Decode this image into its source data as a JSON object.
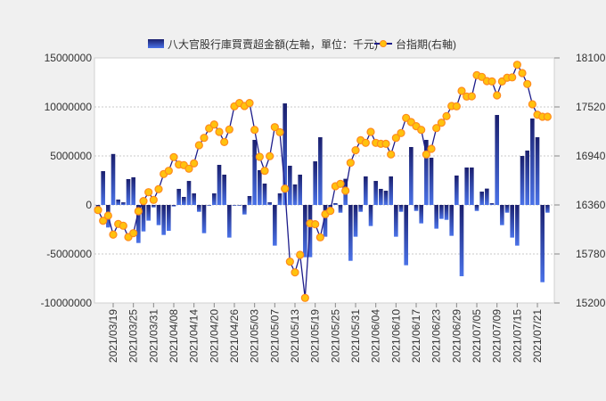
{
  "chart_data": {
    "type": "bar+line",
    "legend": {
      "position": "top-center",
      "bar_label": "八大官股行庫買賣超金額(左軸，單位：千元)",
      "line_label": "台指期(右軸)"
    },
    "left_axis": {
      "min": -10000000,
      "max": 15000000,
      "step": 5000000,
      "ticks": [
        "15000000",
        "10000000",
        "5000000",
        "0",
        "-5000000",
        "-10000000"
      ]
    },
    "right_axis": {
      "min": 15200,
      "max": 18100,
      "step": 580,
      "ticks": [
        "18100",
        "17520",
        "16940",
        "16360",
        "15780",
        "15200"
      ]
    },
    "grid": true,
    "x_tick_labels": [
      "2021/03/19",
      "2021/03/25",
      "2021/03/31",
      "2021/04/08",
      "2021/04/14",
      "2021/04/20",
      "2021/04/26",
      "2021/05/03",
      "2021/05/07",
      "2021/05/13",
      "2021/05/19",
      "2021/05/25",
      "2021/05/31",
      "2021/06/04",
      "2021/06/10",
      "2021/06/17",
      "2021/06/23",
      "2021/06/29",
      "2021/07/05",
      "2021/07/09",
      "2021/07/15",
      "2021/07/21"
    ],
    "x_tick_first_index": 3,
    "x_tick_every": 4,
    "series": [
      {
        "name": "八大官股行庫買賣超金額",
        "axis": "left",
        "kind": "bar",
        "values": [
          -850000,
          3450000,
          -2300000,
          5200000,
          550000,
          270000,
          2640000,
          2820000,
          -3880000,
          -2700000,
          -1600000,
          -250000,
          -2060000,
          -3060000,
          -2640000,
          -150000,
          1640000,
          820000,
          2450000,
          1180000,
          -700000,
          -2880000,
          -60000,
          1180000,
          4090000,
          3090000,
          -3330000,
          -60000,
          -60000,
          -970000,
          910000,
          6640000,
          3550000,
          2180000,
          270000,
          -4150000,
          1180000,
          10360000,
          4000000,
          2090000,
          3090000,
          -5330000,
          -5330000,
          4450000,
          6910000,
          -3240000,
          -500000,
          180000,
          -790000,
          2670000,
          -5700000,
          -3240000,
          -700000,
          2910000,
          -2150000,
          2450000,
          1640000,
          1450000,
          2910000,
          -3240000,
          -700000,
          -6150000,
          5910000,
          -610000,
          -1880000,
          6640000,
          4820000,
          -2420000,
          -1420000,
          -1520000,
          -3150000,
          3000000,
          -7270000,
          3820000,
          3820000,
          -610000,
          1360000,
          1670000,
          180000,
          9180000,
          -2060000,
          -790000,
          -3330000,
          -4150000,
          5000000,
          5550000,
          8820000,
          6910000,
          -7880000,
          -790000
        ]
      },
      {
        "name": "台指期",
        "axis": "right",
        "kind": "line",
        "values": [
          16300,
          16173,
          16234,
          16009,
          16135,
          16114,
          15980,
          16026,
          16286,
          16406,
          16511,
          16420,
          16547,
          16726,
          16764,
          16926,
          16838,
          16831,
          16789,
          16852,
          17067,
          17154,
          17267,
          17312,
          17225,
          17105,
          17253,
          17527,
          17566,
          17531,
          17566,
          17249,
          16930,
          16764,
          16937,
          17281,
          17221,
          16553,
          15689,
          15562,
          15770,
          15260,
          16142,
          16132,
          15977,
          16251,
          16290,
          16582,
          16610,
          16529,
          16859,
          17007,
          17126,
          17095,
          17225,
          17095,
          17084,
          17084,
          16958,
          17154,
          17211,
          17390,
          17341,
          17292,
          17249,
          16958,
          17024,
          17270,
          17333,
          17411,
          17531,
          17527,
          17710,
          17643,
          17646,
          17896,
          17875,
          17826,
          17822,
          17657,
          17822,
          17865,
          17870,
          18019,
          17921,
          17791,
          17552,
          17428,
          17404,
          17404
        ]
      }
    ],
    "colors": {
      "bar_top": "#1a1f6e",
      "bar_bottom": "#4a72e8",
      "line": "#1c1c8a",
      "marker_fill": "#ffc20e",
      "marker_stroke": "#ff8a1e",
      "grid": "#c8c8c8",
      "plot_bg": "#ffffff",
      "page_bg": "#f0f0f0"
    }
  }
}
